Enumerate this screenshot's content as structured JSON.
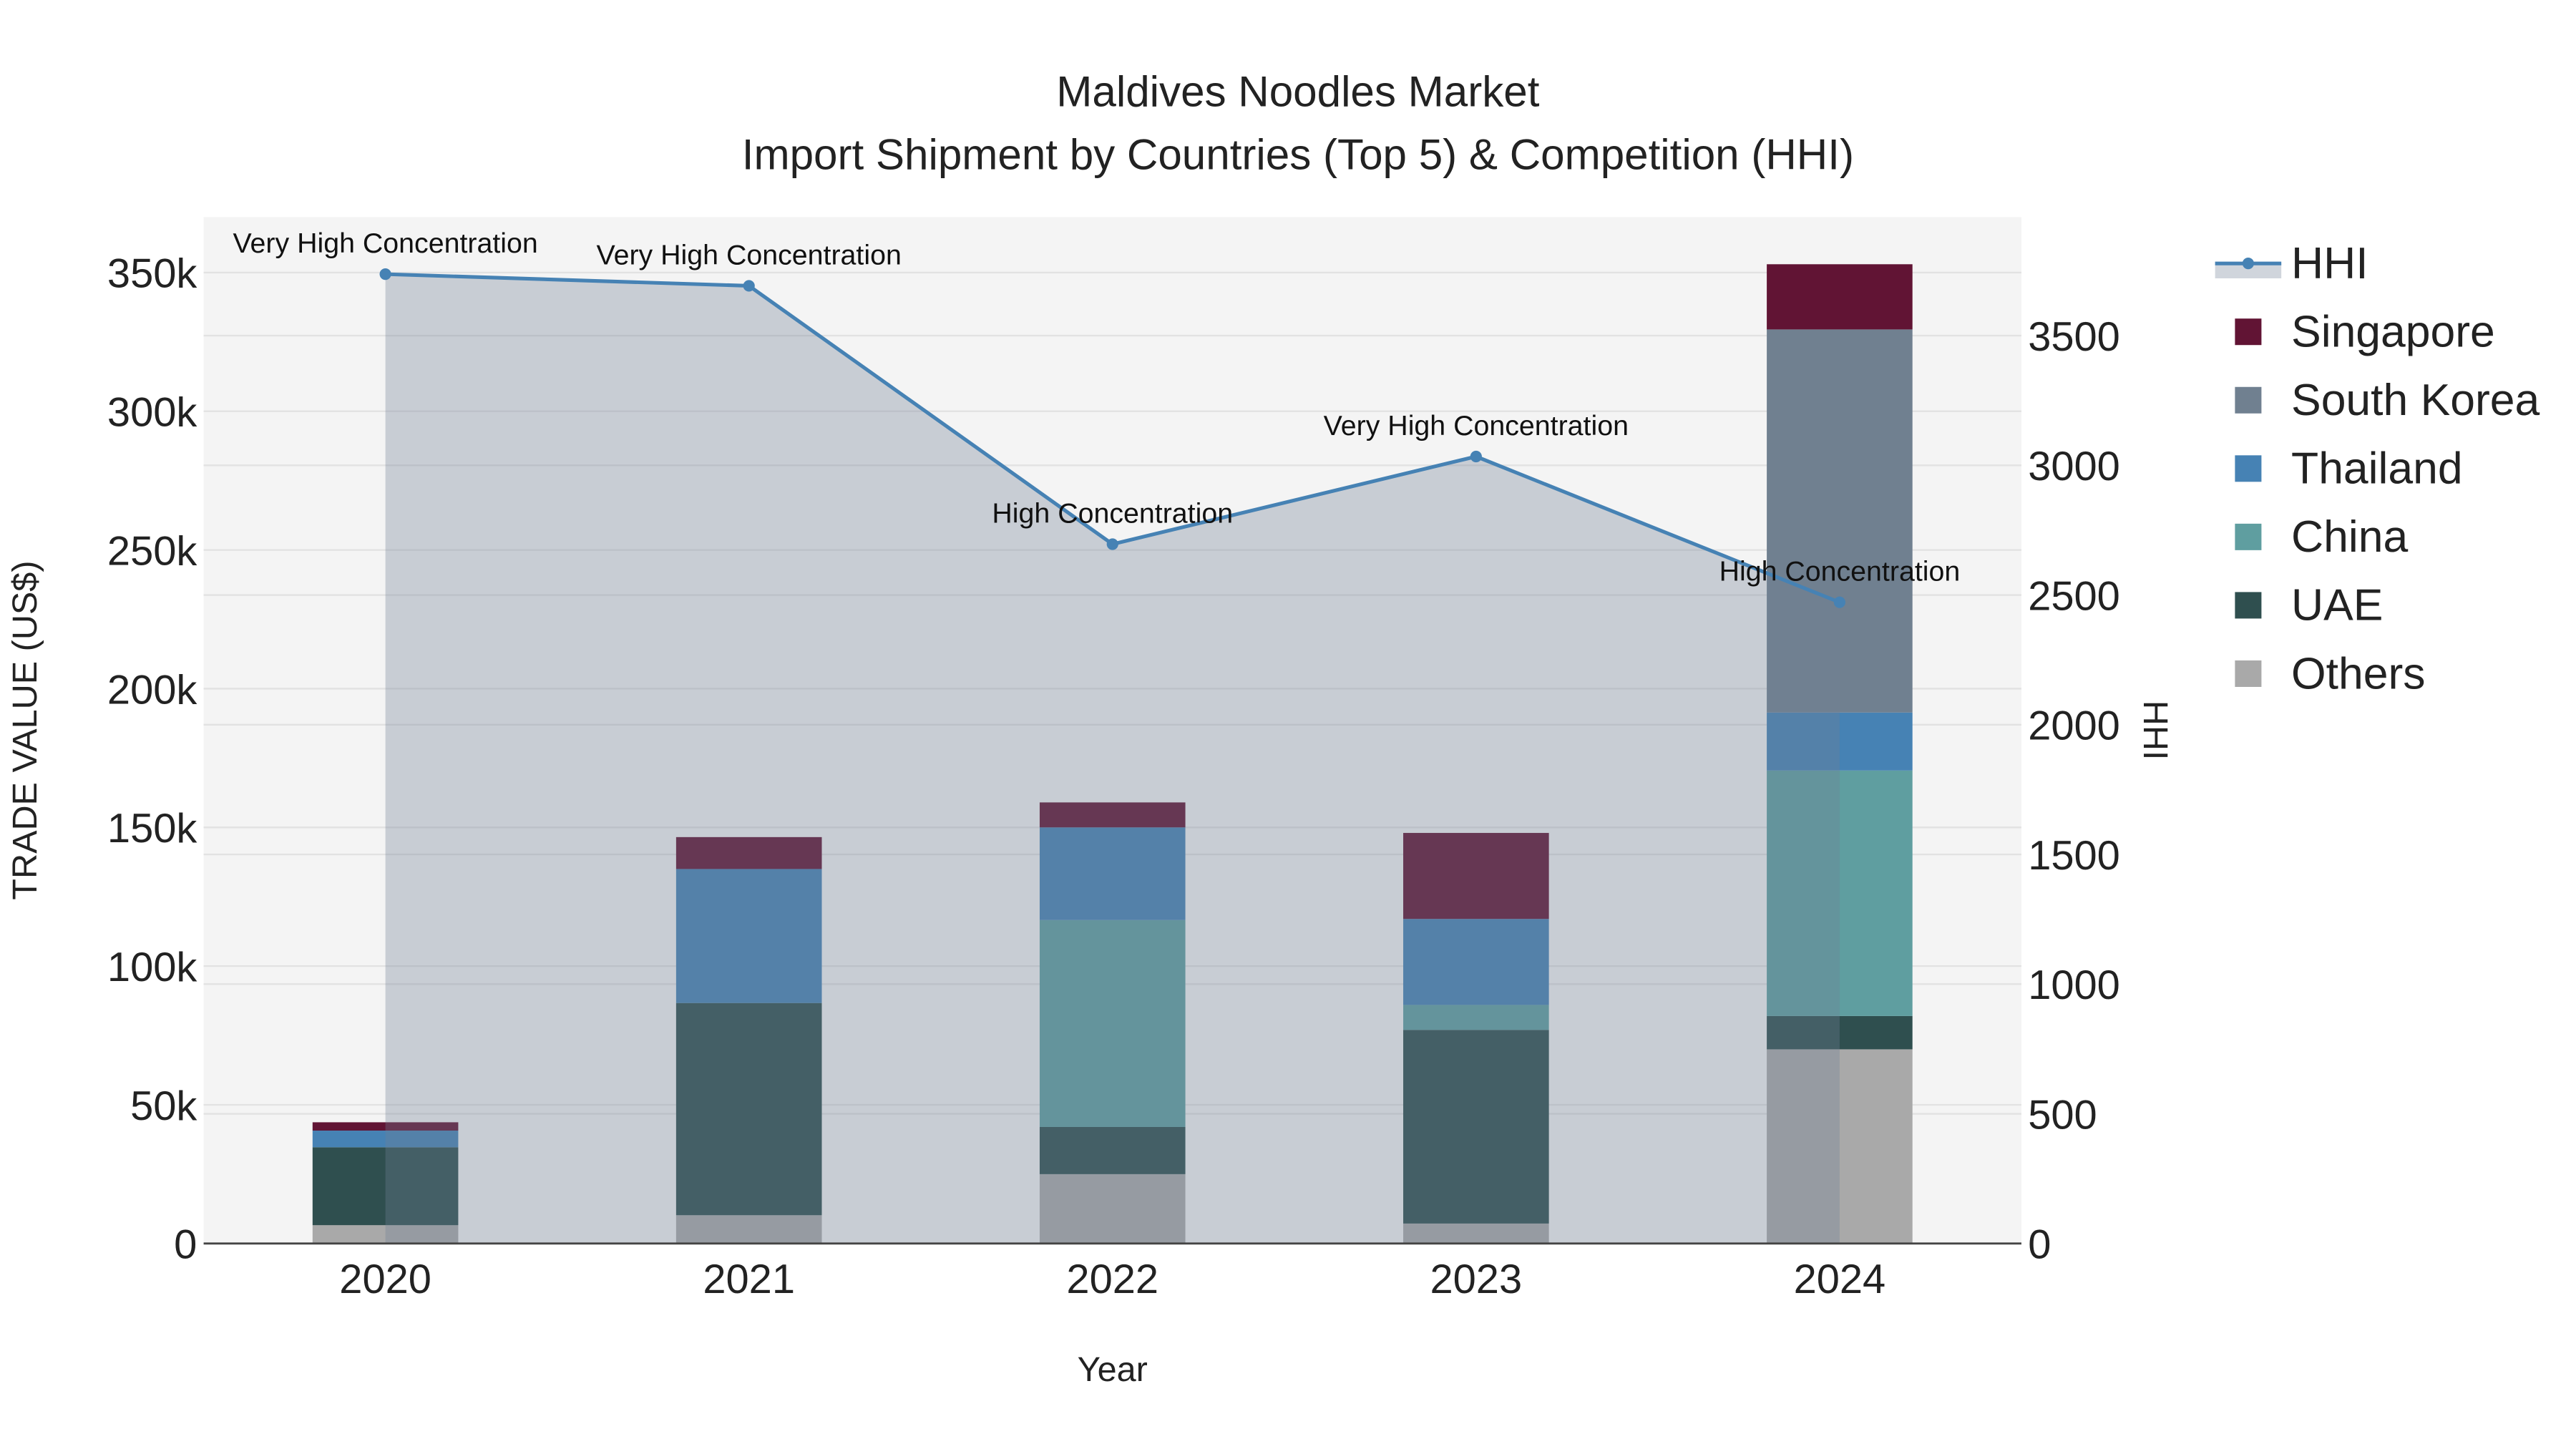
{
  "chart_data": {
    "type": "bar",
    "title_line1": "Maldives Noodles Market",
    "title_line2": "Import Shipment by Countries (Top 5) & Competition (HHI)",
    "xlabel": "Year",
    "ylabel": "TRADE VALUE (US$)",
    "y2label": "HHI",
    "categories": [
      "2020",
      "2021",
      "2022",
      "2023",
      "2024"
    ],
    "ylim": [
      0,
      370000
    ],
    "y2lim": [
      0,
      3957
    ],
    "yticks": [
      0,
      50000,
      100000,
      150000,
      200000,
      250000,
      300000,
      350000
    ],
    "ytick_labels": [
      "0",
      "50k",
      "100k",
      "150k",
      "200k",
      "250k",
      "300k",
      "350k"
    ],
    "y2ticks": [
      0,
      500,
      1000,
      1500,
      2000,
      2500,
      3000,
      3500
    ],
    "y2tick_labels": [
      "0",
      "500",
      "1000",
      "1500",
      "2000",
      "2500",
      "3000",
      "3500"
    ],
    "grid": true,
    "legend_placement": "right",
    "series": [
      {
        "name": "Others",
        "color": "#A9A9A9",
        "values": [
          6600,
          10200,
          25000,
          7200,
          70000
        ]
      },
      {
        "name": "UAE",
        "color": "#2F4F4F",
        "values": [
          28100,
          76500,
          17000,
          69800,
          12000
        ]
      },
      {
        "name": "China",
        "color": "#5F9EA0",
        "values": [
          0,
          0,
          74600,
          9000,
          88500
        ]
      },
      {
        "name": "Thailand",
        "color": "#4682B4",
        "values": [
          6000,
          48300,
          33400,
          31000,
          20900
        ]
      },
      {
        "name": "South Korea",
        "color": "#708090",
        "values": [
          0,
          0,
          0,
          0,
          138100
        ]
      },
      {
        "name": "Singapore",
        "color": "#611434",
        "values": [
          3000,
          11500,
          9000,
          31000,
          23500
        ]
      }
    ],
    "hhi": {
      "name": "HHI",
      "color": "#4682B4",
      "values": [
        3737,
        3692,
        2696,
        3034,
        2472
      ],
      "annotations": [
        "Very High Concentration",
        "Very High Concentration",
        "High Concentration",
        "Very High Concentration",
        "High Concentration"
      ]
    },
    "legend_order": [
      "HHI",
      "Singapore",
      "South Korea",
      "Thailand",
      "China",
      "UAE",
      "Others"
    ]
  }
}
